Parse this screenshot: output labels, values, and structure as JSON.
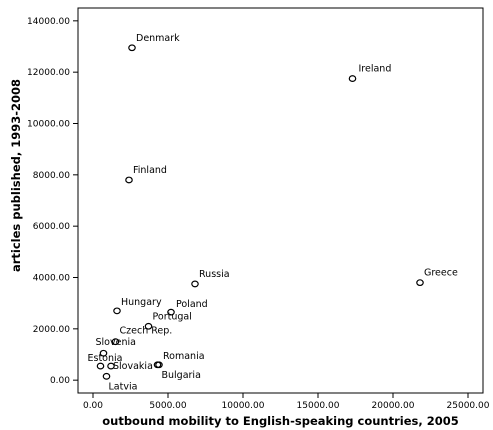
{
  "chart_data": {
    "type": "scatter",
    "title": "",
    "xlabel": "outbound mobility to English-speaking countries, 2005",
    "ylabel": "articles published, 1993-2008",
    "xlim": [
      -1000,
      26000
    ],
    "ylim": [
      -500,
      14500
    ],
    "xticks": [
      "0.00",
      "5000.00",
      "10000.00",
      "15000.00",
      "20000.00",
      "25000.00"
    ],
    "xtick_values": [
      0,
      5000,
      10000,
      15000,
      20000,
      25000
    ],
    "yticks": [
      "0.00",
      "2000.00",
      "4000.00",
      "6000.00",
      "8000.00",
      "10000.00",
      "12000.00",
      "14000.00"
    ],
    "ytick_values": [
      0,
      2000,
      4000,
      6000,
      8000,
      10000,
      12000,
      14000
    ],
    "grid": false,
    "points": [
      {
        "label": "Denmark",
        "x": 2600,
        "y": 12950
      },
      {
        "label": "Ireland",
        "x": 17300,
        "y": 11750
      },
      {
        "label": "Finland",
        "x": 2400,
        "y": 7800
      },
      {
        "label": "Greece",
        "x": 21800,
        "y": 3800
      },
      {
        "label": "Russia",
        "x": 6800,
        "y": 3750
      },
      {
        "label": "Poland",
        "x": 5200,
        "y": 2650
      },
      {
        "label": "Hungary",
        "x": 1600,
        "y": 2700
      },
      {
        "label": "Portugal",
        "x": 3700,
        "y": 2100
      },
      {
        "label": "Czech Rep.",
        "x": 1500,
        "y": 1500
      },
      {
        "label": "Slovenia",
        "x": 700,
        "y": 1050
      },
      {
        "label": "Romania",
        "x": 4400,
        "y": 600
      },
      {
        "label": "Bulgaria",
        "x": 4300,
        "y": 600
      },
      {
        "label": "Estonia",
        "x": 500,
        "y": 550
      },
      {
        "label": "Slovakia",
        "x": 1200,
        "y": 550
      },
      {
        "label": "Latvia",
        "x": 900,
        "y": 150
      }
    ]
  }
}
